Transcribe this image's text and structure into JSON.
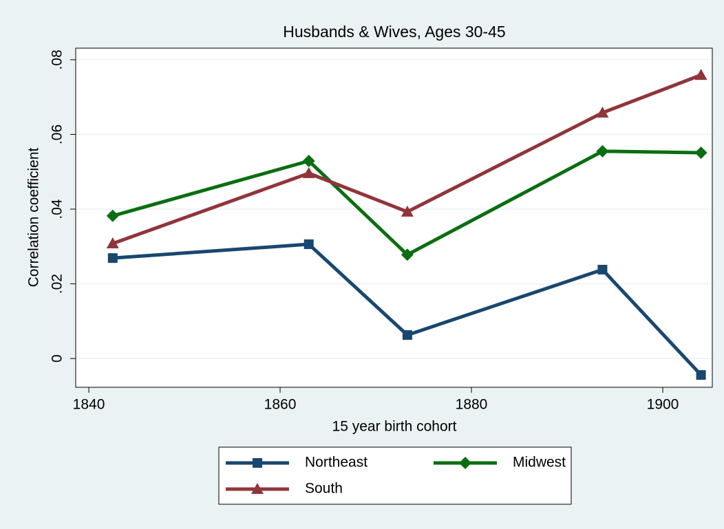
{
  "chart_data": {
    "type": "line",
    "title": "Husbands & Wives, Ages 30-45",
    "xlabel": "15 year birth cohort",
    "ylabel": "Correlation coefficient",
    "x": [
      1842.5,
      1863,
      1873.3,
      1893.7,
      1904
    ],
    "series": [
      {
        "name": "Northeast",
        "color": "#1a476f",
        "marker": "square",
        "values": [
          0.0269,
          0.0306,
          0.0063,
          0.0238,
          -0.0044
        ]
      },
      {
        "name": "Midwest",
        "color": "#0b6e12",
        "marker": "diamond",
        "values": [
          0.0382,
          0.0529,
          0.0278,
          0.0555,
          0.0551
        ]
      },
      {
        "name": "South",
        "color": "#90353b",
        "marker": "triangle",
        "values": [
          0.0308,
          0.0496,
          0.0393,
          0.0658,
          0.0759
        ]
      }
    ],
    "xlim": [
      1838.63,
      1905.18
    ],
    "xticks": [
      1840,
      1860,
      1880,
      1900
    ],
    "ylim": [
      -0.0077,
      0.0831
    ],
    "yticks": [
      0,
      {
        "value": 0.02,
        "label": ".02"
      },
      {
        "value": 0.04,
        "label": ".04"
      },
      {
        "value": 0.06,
        "label": ".06"
      },
      {
        "value": 0.08,
        "label": ".08"
      }
    ],
    "grid": true,
    "legend": "bottom"
  }
}
